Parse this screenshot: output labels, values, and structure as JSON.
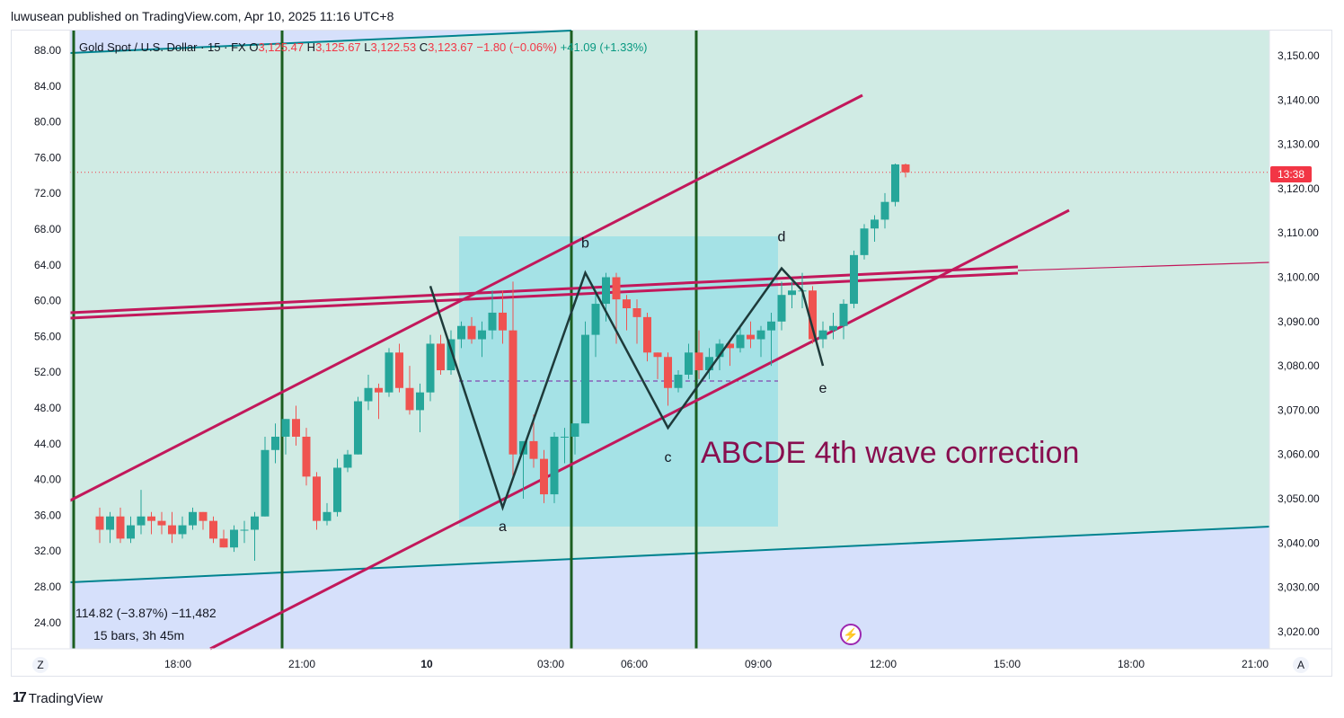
{
  "header": {
    "publisher_line": "luwusean published on TradingView.com, Apr 10, 2025 11:16 UTC+8"
  },
  "legend": {
    "symbol": "Gold Spot / U.S. Dollar · 15 · FX",
    "o_label": "O",
    "o_value": "3,125.47",
    "h_label": "H",
    "h_value": "3,125.67",
    "l_label": "L",
    "l_value": "3,122.53",
    "c_label": "C",
    "c_value": "3,123.67",
    "change": "−1.80 (−0.06%)",
    "ref_change": "+41.09 (+1.33%)"
  },
  "measure": {
    "line1": "114.82 (−3.87%) −11,482",
    "line2": "15 bars, 3h 45m"
  },
  "countdown": "13:38",
  "annotation": "ABCDE 4th wave correction",
  "footer": {
    "brand": "TradingView",
    "brand_mark": "17",
    "z_btn": "Z",
    "a_btn": "A"
  },
  "colors": {
    "up": "#26a69a",
    "down": "#ef5350",
    "channel": "#c2185b",
    "box": "#a0e1e6",
    "zone_green": "#d0ebe4",
    "zone_blue": "#d6e0fb",
    "vline": "#1b5e20",
    "annotation": "#880e4f"
  },
  "chart_data": {
    "type": "candlestick",
    "timeframe": "15",
    "y_right": {
      "min": 3015,
      "max": 3155,
      "ticks": [
        "3,150.00",
        "3,140.00",
        "3,130.00",
        "3,120.00",
        "3,110.00",
        "3,100.00",
        "3,090.00",
        "3,080.00",
        "3,070.00",
        "3,060.00",
        "3,050.00",
        "3,040.00",
        "3,030.00",
        "3,020.00"
      ]
    },
    "y_left_ticks": [
      "88.00",
      "84.00",
      "80.00",
      "76.00",
      "72.00",
      "68.00",
      "64.00",
      "60.00",
      "56.00",
      "52.00",
      "48.00",
      "44.00",
      "40.00",
      "36.00",
      "32.00",
      "28.00",
      "24.00"
    ],
    "x_ticks": [
      "18:00",
      "21:00",
      "10",
      "03:00",
      "06:00",
      "09:00",
      "12:00",
      "15:00",
      "18:00",
      "21:00"
    ],
    "current_price": 3123.67,
    "wave_labels": [
      "a",
      "b",
      "c",
      "d",
      "e"
    ],
    "wave_points": [
      {
        "t": "00:00",
        "price": 3098
      },
      {
        "t": "01:45",
        "price": 3048
      },
      {
        "t": "03:45",
        "price": 3101
      },
      {
        "t": "05:45",
        "price": 3066
      },
      {
        "t": "08:30",
        "price": 3102
      },
      {
        "t": "09:00",
        "price": 3097
      },
      {
        "t": "09:30",
        "price": 3080
      }
    ],
    "candles": [
      {
        "t": "16:00",
        "o": 3046,
        "h": 3048,
        "l": 3040,
        "c": 3043
      },
      {
        "t": "16:15",
        "o": 3043,
        "h": 3047,
        "l": 3040,
        "c": 3046
      },
      {
        "t": "16:30",
        "o": 3046,
        "h": 3048,
        "l": 3040,
        "c": 3041
      },
      {
        "t": "16:45",
        "o": 3041,
        "h": 3046,
        "l": 3040,
        "c": 3044
      },
      {
        "t": "17:00",
        "o": 3044,
        "h": 3052,
        "l": 3042,
        "c": 3046
      },
      {
        "t": "17:15",
        "o": 3046,
        "h": 3047,
        "l": 3042,
        "c": 3045
      },
      {
        "t": "17:30",
        "o": 3045,
        "h": 3047,
        "l": 3042,
        "c": 3044
      },
      {
        "t": "17:45",
        "o": 3044,
        "h": 3047,
        "l": 3040,
        "c": 3042
      },
      {
        "t": "18:00",
        "o": 3042,
        "h": 3046,
        "l": 3041,
        "c": 3044
      },
      {
        "t": "18:15",
        "o": 3044,
        "h": 3048,
        "l": 3043,
        "c": 3047
      },
      {
        "t": "18:30",
        "o": 3047,
        "h": 3047,
        "l": 3043,
        "c": 3045
      },
      {
        "t": "18:45",
        "o": 3045,
        "h": 3046,
        "l": 3040,
        "c": 3041
      },
      {
        "t": "19:00",
        "o": 3041,
        "h": 3043,
        "l": 3039,
        "c": 3039
      },
      {
        "t": "19:15",
        "o": 3039,
        "h": 3044,
        "l": 3038,
        "c": 3043
      },
      {
        "t": "19:30",
        "o": 3043,
        "h": 3045,
        "l": 3040,
        "c": 3043
      },
      {
        "t": "19:45",
        "o": 3043,
        "h": 3047,
        "l": 3036,
        "c": 3046
      },
      {
        "t": "20:00",
        "o": 3046,
        "h": 3064,
        "l": 3046,
        "c": 3061
      },
      {
        "t": "20:15",
        "o": 3061,
        "h": 3067,
        "l": 3058,
        "c": 3064
      },
      {
        "t": "20:30",
        "o": 3064,
        "h": 3068,
        "l": 3060,
        "c": 3068
      },
      {
        "t": "20:45",
        "o": 3068,
        "h": 3071,
        "l": 3062,
        "c": 3064
      },
      {
        "t": "21:00",
        "o": 3064,
        "h": 3066,
        "l": 3053,
        "c": 3055
      },
      {
        "t": "21:15",
        "o": 3055,
        "h": 3056,
        "l": 3043,
        "c": 3045
      },
      {
        "t": "21:30",
        "o": 3045,
        "h": 3049,
        "l": 3044,
        "c": 3047
      },
      {
        "t": "21:45",
        "o": 3047,
        "h": 3059,
        "l": 3046,
        "c": 3057
      },
      {
        "t": "22:00",
        "o": 3057,
        "h": 3061,
        "l": 3056,
        "c": 3060
      },
      {
        "t": "22:15",
        "o": 3060,
        "h": 3073,
        "l": 3060,
        "c": 3072
      },
      {
        "t": "22:30",
        "o": 3072,
        "h": 3078,
        "l": 3070,
        "c": 3075
      },
      {
        "t": "22:45",
        "o": 3075,
        "h": 3076,
        "l": 3068,
        "c": 3074
      },
      {
        "t": "23:00",
        "o": 3074,
        "h": 3084,
        "l": 3073,
        "c": 3083
      },
      {
        "t": "23:15",
        "o": 3083,
        "h": 3085,
        "l": 3074,
        "c": 3075
      },
      {
        "t": "23:30",
        "o": 3075,
        "h": 3080,
        "l": 3069,
        "c": 3070
      },
      {
        "t": "23:45",
        "o": 3070,
        "h": 3076,
        "l": 3065,
        "c": 3074
      },
      {
        "t": "00:00",
        "o": 3074,
        "h": 3087,
        "l": 3072,
        "c": 3085
      },
      {
        "t": "00:15",
        "o": 3085,
        "h": 3087,
        "l": 3078,
        "c": 3079
      },
      {
        "t": "00:30",
        "o": 3079,
        "h": 3088,
        "l": 3078,
        "c": 3086
      },
      {
        "t": "00:45",
        "o": 3086,
        "h": 3090,
        "l": 3084,
        "c": 3089
      },
      {
        "t": "01:00",
        "o": 3089,
        "h": 3091,
        "l": 3085,
        "c": 3086
      },
      {
        "t": "01:15",
        "o": 3086,
        "h": 3090,
        "l": 3082,
        "c": 3088
      },
      {
        "t": "01:30",
        "o": 3088,
        "h": 3097,
        "l": 3086,
        "c": 3092
      },
      {
        "t": "01:45",
        "o": 3092,
        "h": 3097,
        "l": 3085,
        "c": 3088
      },
      {
        "t": "02:00",
        "o": 3088,
        "h": 3099,
        "l": 3055,
        "c": 3060
      },
      {
        "t": "02:15",
        "o": 3060,
        "h": 3063,
        "l": 3050,
        "c": 3063
      },
      {
        "t": "02:30",
        "o": 3063,
        "h": 3069,
        "l": 3057,
        "c": 3059
      },
      {
        "t": "02:45",
        "o": 3059,
        "h": 3061,
        "l": 3049,
        "c": 3051
      },
      {
        "t": "03:00",
        "o": 3051,
        "h": 3065,
        "l": 3049,
        "c": 3064
      },
      {
        "t": "03:15",
        "o": 3064,
        "h": 3066,
        "l": 3058,
        "c": 3064
      },
      {
        "t": "03:30",
        "o": 3064,
        "h": 3067,
        "l": 3060,
        "c": 3067
      },
      {
        "t": "03:45",
        "o": 3067,
        "h": 3090,
        "l": 3067,
        "c": 3087
      },
      {
        "t": "04:00",
        "o": 3087,
        "h": 3097,
        "l": 3082,
        "c": 3094
      },
      {
        "t": "04:15",
        "o": 3094,
        "h": 3101,
        "l": 3090,
        "c": 3100
      },
      {
        "t": "04:30",
        "o": 3100,
        "h": 3101,
        "l": 3085,
        "c": 3095
      },
      {
        "t": "04:45",
        "o": 3095,
        "h": 3096,
        "l": 3088,
        "c": 3093
      },
      {
        "t": "05:00",
        "o": 3093,
        "h": 3095,
        "l": 3085,
        "c": 3091
      },
      {
        "t": "05:15",
        "o": 3091,
        "h": 3092,
        "l": 3081,
        "c": 3083
      },
      {
        "t": "05:30",
        "o": 3083,
        "h": 3083,
        "l": 3077,
        "c": 3082
      },
      {
        "t": "05:45",
        "o": 3082,
        "h": 3083,
        "l": 3071,
        "c": 3075
      },
      {
        "t": "06:00",
        "o": 3075,
        "h": 3079,
        "l": 3074,
        "c": 3078
      },
      {
        "t": "06:15",
        "o": 3078,
        "h": 3085,
        "l": 3077,
        "c": 3083
      },
      {
        "t": "06:30",
        "o": 3083,
        "h": 3088,
        "l": 3077,
        "c": 3079
      },
      {
        "t": "06:45",
        "o": 3079,
        "h": 3084,
        "l": 3077,
        "c": 3082
      },
      {
        "t": "07:00",
        "o": 3082,
        "h": 3086,
        "l": 3079,
        "c": 3085
      },
      {
        "t": "07:15",
        "o": 3085,
        "h": 3086,
        "l": 3080,
        "c": 3084
      },
      {
        "t": "07:30",
        "o": 3084,
        "h": 3089,
        "l": 3083,
        "c": 3087
      },
      {
        "t": "07:45",
        "o": 3087,
        "h": 3090,
        "l": 3084,
        "c": 3086
      },
      {
        "t": "08:00",
        "o": 3086,
        "h": 3089,
        "l": 3082,
        "c": 3088
      },
      {
        "t": "08:15",
        "o": 3088,
        "h": 3092,
        "l": 3080,
        "c": 3090
      },
      {
        "t": "08:30",
        "o": 3090,
        "h": 3099,
        "l": 3088,
        "c": 3096
      },
      {
        "t": "08:45",
        "o": 3096,
        "h": 3099,
        "l": 3093,
        "c": 3097
      },
      {
        "t": "09:00",
        "o": 3097,
        "h": 3101,
        "l": 3093,
        "c": 3097
      },
      {
        "t": "09:15",
        "o": 3097,
        "h": 3098,
        "l": 3085,
        "c": 3086
      },
      {
        "t": "09:30",
        "o": 3086,
        "h": 3090,
        "l": 3084,
        "c": 3088
      },
      {
        "t": "09:45",
        "o": 3088,
        "h": 3092,
        "l": 3086,
        "c": 3089
      },
      {
        "t": "10:00",
        "o": 3089,
        "h": 3095,
        "l": 3086,
        "c": 3094
      },
      {
        "t": "10:15",
        "o": 3094,
        "h": 3106,
        "l": 3093,
        "c": 3105
      },
      {
        "t": "10:30",
        "o": 3105,
        "h": 3112,
        "l": 3104,
        "c": 3111
      },
      {
        "t": "10:45",
        "o": 3111,
        "h": 3114,
        "l": 3108,
        "c": 3113
      },
      {
        "t": "11:00",
        "o": 3113,
        "h": 3119,
        "l": 3111,
        "c": 3117
      },
      {
        "t": "11:15",
        "o": 3117,
        "h": 3125.67,
        "l": 3116,
        "c": 3125.47
      },
      {
        "t": "11:30",
        "o": 3125.47,
        "h": 3125.67,
        "l": 3122.53,
        "c": 3123.67
      }
    ]
  }
}
